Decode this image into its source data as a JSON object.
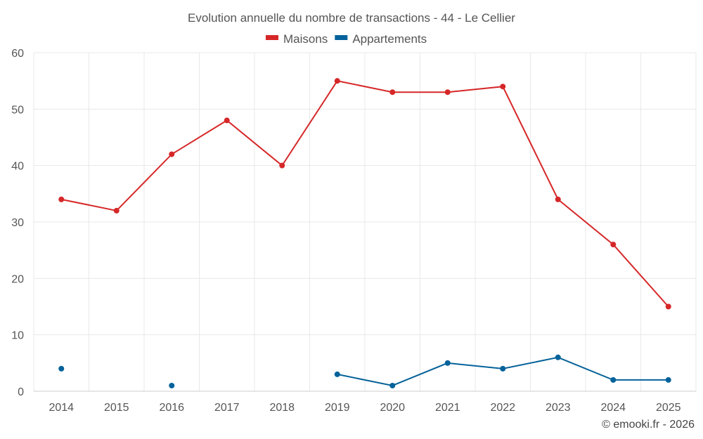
{
  "chart_data": {
    "type": "line",
    "title": "Evolution annuelle du nombre de transactions - 44 - Le Cellier",
    "categories": [
      "2014",
      "2015",
      "2016",
      "2017",
      "2018",
      "2019",
      "2020",
      "2021",
      "2022",
      "2023",
      "2024",
      "2025"
    ],
    "ylim": [
      0,
      60
    ],
    "yticks": [
      0,
      10,
      20,
      30,
      40,
      50,
      60
    ],
    "grid": true,
    "legend_position": "top",
    "series": [
      {
        "name": "Maisons",
        "color": "#d62728",
        "values": [
          34,
          32,
          42,
          48,
          40,
          55,
          53,
          53,
          54,
          34,
          26,
          15
        ]
      },
      {
        "name": "Appartements",
        "color": "#05629a",
        "values": [
          4,
          null,
          1,
          null,
          null,
          3,
          1,
          5,
          4,
          6,
          2,
          2
        ]
      }
    ]
  },
  "credit": "© emooki.fr - 2026"
}
